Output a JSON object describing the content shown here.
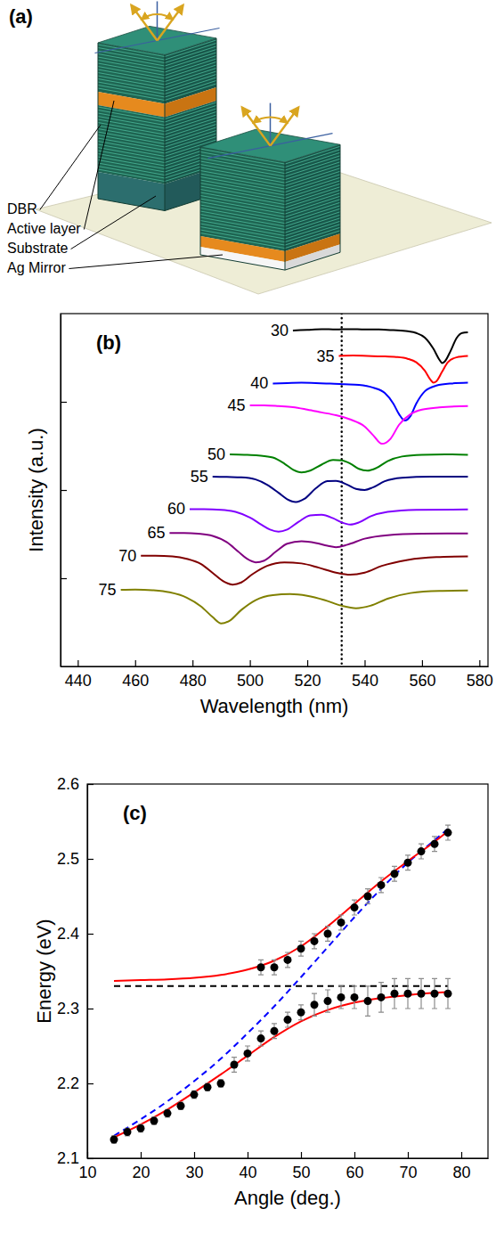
{
  "diagram": {
    "label": "(a)",
    "layers": [
      "DBR",
      "Active layer",
      "Substrate",
      "Ag Mirror"
    ]
  },
  "chart_data": [
    {
      "type": "line",
      "title": "(b)",
      "xlabel": "Wavelength (nm)",
      "ylabel": "Intensity (a.u.)",
      "xlim": [
        434,
        583
      ],
      "ylim": [
        0,
        10
      ],
      "xticks": [
        440,
        460,
        480,
        500,
        520,
        540,
        560,
        580
      ],
      "yticks": [
        2.5,
        5,
        7.5
      ],
      "tick_labels": "x",
      "reference_line": {
        "x": 532,
        "line_style": "dotted",
        "color": "#000000"
      },
      "series": [
        {
          "name": "30",
          "color": "#000000",
          "x": [
            515,
            520,
            525,
            530,
            535,
            540,
            545,
            550,
            555,
            558,
            561,
            564,
            566,
            567,
            568,
            570,
            572,
            574,
            576
          ],
          "values": [
            9.52,
            9.54,
            9.56,
            9.55,
            9.56,
            9.55,
            9.55,
            9.53,
            9.5,
            9.45,
            9.32,
            9.0,
            8.7,
            8.6,
            8.65,
            8.95,
            9.3,
            9.45,
            9.47
          ]
        },
        {
          "name": "35",
          "color": "#ff0000",
          "x": [
            531,
            536,
            541,
            546,
            551,
            555,
            558,
            561,
            563,
            564,
            565,
            567,
            569,
            572,
            576
          ],
          "values": [
            8.8,
            8.81,
            8.8,
            8.79,
            8.77,
            8.72,
            8.62,
            8.38,
            8.12,
            8.04,
            8.08,
            8.35,
            8.62,
            8.76,
            8.8
          ]
        },
        {
          "name": "40",
          "color": "#0000ff",
          "x": [
            508,
            513,
            518,
            523,
            528,
            533,
            538,
            543,
            547,
            550,
            552,
            554,
            556,
            558,
            561,
            565,
            570,
            576
          ],
          "values": [
            8.02,
            8.03,
            8.04,
            8.03,
            8.02,
            8.0,
            7.98,
            7.9,
            7.75,
            7.45,
            7.15,
            6.97,
            7.1,
            7.45,
            7.8,
            7.96,
            8.02,
            8.04
          ]
        },
        {
          "name": "45",
          "color": "#ff00ff",
          "x": [
            500,
            505,
            510,
            515,
            520,
            525,
            530,
            535,
            540,
            543,
            546,
            549,
            552,
            556,
            560,
            566,
            576
          ],
          "values": [
            7.4,
            7.4,
            7.38,
            7.35,
            7.28,
            7.2,
            7.12,
            7.0,
            6.8,
            6.55,
            6.31,
            6.45,
            6.85,
            7.15,
            7.28,
            7.34,
            7.38
          ]
        },
        {
          "name": "50",
          "color": "#008000",
          "x": [
            493,
            498,
            503,
            508,
            512,
            515,
            518,
            521,
            525,
            529,
            532,
            535,
            538,
            541,
            544,
            548,
            553,
            560,
            568,
            576
          ],
          "values": [
            6.01,
            6.0,
            5.98,
            5.92,
            5.75,
            5.58,
            5.5,
            5.55,
            5.72,
            5.85,
            5.84,
            5.75,
            5.6,
            5.55,
            5.62,
            5.82,
            5.95,
            6.0,
            6.01,
            6.0
          ]
        },
        {
          "name": "55",
          "color": "#000080",
          "x": [
            487,
            492,
            497,
            502,
            506,
            510,
            513,
            516,
            519,
            523,
            527,
            530,
            534,
            537,
            540,
            543,
            547,
            553,
            563,
            576
          ],
          "values": [
            5.38,
            5.37,
            5.36,
            5.3,
            5.15,
            4.92,
            4.74,
            4.66,
            4.75,
            5.05,
            5.25,
            5.26,
            5.15,
            5.03,
            5.0,
            5.08,
            5.25,
            5.35,
            5.38,
            5.38
          ]
        },
        {
          "name": "60",
          "color": "#8000ff",
          "x": [
            479,
            484,
            490,
            495,
            500,
            504,
            507,
            510,
            513,
            517,
            521,
            525,
            529,
            532,
            535,
            538,
            542,
            548,
            558,
            576
          ],
          "values": [
            4.46,
            4.46,
            4.44,
            4.38,
            4.22,
            4.02,
            3.88,
            3.82,
            3.88,
            4.1,
            4.28,
            4.3,
            4.2,
            4.08,
            4.02,
            4.08,
            4.25,
            4.38,
            4.44,
            4.45
          ]
        },
        {
          "name": "65",
          "color": "#800080",
          "x": [
            472,
            477,
            482,
            487,
            492,
            496,
            499,
            502,
            505,
            509,
            513,
            518,
            523,
            527,
            530,
            534,
            540,
            548,
            560,
            576
          ],
          "values": [
            3.78,
            3.78,
            3.76,
            3.7,
            3.52,
            3.25,
            3.05,
            2.95,
            3.0,
            3.25,
            3.48,
            3.55,
            3.5,
            3.42,
            3.38,
            3.45,
            3.62,
            3.72,
            3.76,
            3.77
          ]
        },
        {
          "name": "70",
          "color": "#800000",
          "x": [
            462,
            467,
            473,
            478,
            483,
            487,
            491,
            494,
            497,
            501,
            506,
            512,
            518,
            524,
            530,
            535,
            540,
            546,
            555,
            565,
            576
          ],
          "values": [
            3.14,
            3.14,
            3.12,
            3.05,
            2.9,
            2.65,
            2.4,
            2.32,
            2.38,
            2.62,
            2.85,
            2.95,
            2.92,
            2.8,
            2.66,
            2.6,
            2.66,
            2.85,
            3.02,
            3.1,
            3.12
          ]
        },
        {
          "name": "75",
          "color": "#808000",
          "x": [
            455,
            460,
            466,
            472,
            478,
            483,
            487,
            490,
            493,
            497,
            502,
            508,
            514,
            520,
            526,
            532,
            537,
            542,
            548,
            556,
            566,
            576
          ],
          "values": [
            2.17,
            2.18,
            2.16,
            2.1,
            1.95,
            1.7,
            1.4,
            1.22,
            1.3,
            1.6,
            1.88,
            2.02,
            2.05,
            2.0,
            1.88,
            1.72,
            1.65,
            1.72,
            1.92,
            2.08,
            2.14,
            2.15
          ]
        }
      ]
    },
    {
      "type": "scatter",
      "title": "(c)",
      "xlabel": "Angle (deg.)",
      "ylabel": "Energy (eV)",
      "xlim": [
        10,
        85
      ],
      "ylim": [
        2.1,
        2.6
      ],
      "xticks": [
        10,
        20,
        30,
        40,
        50,
        60,
        70,
        80
      ],
      "yticks": [
        2.1,
        2.2,
        2.3,
        2.4,
        2.5,
        2.6
      ],
      "series": [
        {
          "type": "line",
          "color": "#000000",
          "line_style": "dashed",
          "x": [
            15,
            77.5
          ],
          "values": [
            2.33,
            2.33
          ]
        },
        {
          "type": "line",
          "color": "#0000ff",
          "line_style": "dashed",
          "x": [
            15,
            20,
            25,
            30,
            35,
            40,
            45,
            50,
            55,
            60,
            65,
            70,
            75,
            77.5
          ],
          "values": [
            2.13,
            2.152,
            2.176,
            2.203,
            2.233,
            2.267,
            2.303,
            2.342,
            2.382,
            2.422,
            2.46,
            2.495,
            2.525,
            2.54
          ]
        },
        {
          "type": "line",
          "color": "#ff0000",
          "line_style": "solid",
          "x": [
            15,
            20,
            25,
            30,
            35,
            40,
            45,
            50,
            55,
            60,
            65,
            70,
            75,
            77.5
          ],
          "values": [
            2.337,
            2.338,
            2.339,
            2.341,
            2.345,
            2.352,
            2.364,
            2.383,
            2.41,
            2.44,
            2.47,
            2.497,
            2.523,
            2.537
          ]
        },
        {
          "type": "line",
          "color": "#ff0000",
          "line_style": "solid",
          "x": [
            15,
            20,
            25,
            30,
            35,
            40,
            45,
            50,
            55,
            60,
            65,
            70,
            75,
            77.5
          ],
          "values": [
            2.128,
            2.145,
            2.165,
            2.188,
            2.212,
            2.237,
            2.262,
            2.283,
            2.298,
            2.308,
            2.314,
            2.318,
            2.321,
            2.322
          ]
        },
        {
          "type": "scatter",
          "color": "#000000",
          "marker": "circle",
          "x": [
            15,
            17.5,
            20,
            22.5,
            25,
            27.5,
            30,
            32.5,
            35,
            37.5,
            40,
            42.5,
            45,
            47.5,
            50,
            52.5,
            55,
            57.5,
            60,
            62.5,
            65,
            67.5,
            70,
            72.5,
            75,
            77.5
          ],
          "values": [
            2.125,
            2.135,
            2.14,
            2.15,
            2.16,
            2.17,
            2.185,
            2.195,
            2.2,
            2.225,
            2.24,
            2.26,
            2.27,
            2.285,
            2.295,
            2.305,
            2.31,
            2.315,
            2.315,
            2.31,
            2.315,
            2.32,
            2.32,
            2.32,
            2.32,
            2.32
          ],
          "errors": [
            0.005,
            0.005,
            0.005,
            0.005,
            0.005,
            0.005,
            0.005,
            0.005,
            0.005,
            0.01,
            0.01,
            0.01,
            0.01,
            0.01,
            0.01,
            0.015,
            0.015,
            0.015,
            0.015,
            0.02,
            0.02,
            0.02,
            0.02,
            0.02,
            0.02,
            0.02
          ]
        },
        {
          "type": "scatter",
          "color": "#000000",
          "marker": "circle",
          "x": [
            42.5,
            45,
            47.5,
            50,
            52.5,
            55,
            57.5,
            60,
            62.5,
            65,
            67.5,
            70,
            72.5,
            75,
            77.5
          ],
          "values": [
            2.355,
            2.355,
            2.365,
            2.38,
            2.39,
            2.4,
            2.415,
            2.435,
            2.45,
            2.465,
            2.48,
            2.495,
            2.51,
            2.52,
            2.535
          ],
          "errors": [
            0.01,
            0.01,
            0.01,
            0.01,
            0.01,
            0.01,
            0.01,
            0.01,
            0.01,
            0.01,
            0.01,
            0.01,
            0.01,
            0.01,
            0.01
          ]
        }
      ]
    }
  ]
}
